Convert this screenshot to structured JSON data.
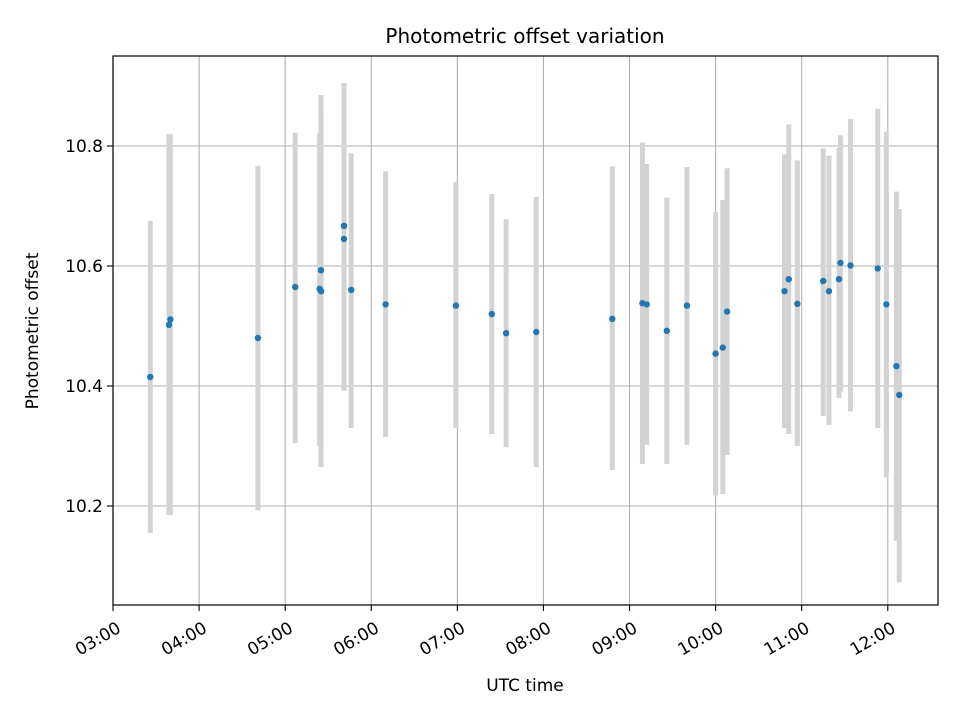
{
  "chart_data": {
    "type": "scatter",
    "title": "Photometric offset variation",
    "xlabel": "UTC time",
    "ylabel": "Photometric offset",
    "x_type": "time",
    "xlim": [
      "03:00",
      "12:35"
    ],
    "ylim": [
      10.035,
      10.95
    ],
    "x_ticks": [
      "03:00",
      "04:00",
      "05:00",
      "06:00",
      "07:00",
      "08:00",
      "09:00",
      "10:00",
      "11:00",
      "12:00"
    ],
    "y_ticks": [
      10.2,
      10.4,
      10.6,
      10.8
    ],
    "grid": true,
    "legend": "none",
    "colors": {
      "marker": "#1f77b4",
      "errorbar": "#d3d3d3",
      "grid": "#b0b0b0"
    },
    "points": [
      {
        "x": "03:26",
        "y": 10.415,
        "ylow": 10.155,
        "yhigh": 10.675
      },
      {
        "x": "03:39",
        "y": 10.502,
        "ylow": 10.185,
        "yhigh": 10.82
      },
      {
        "x": "03:40",
        "y": 10.511,
        "ylow": 10.185,
        "yhigh": 10.82
      },
      {
        "x": "04:41",
        "y": 10.48,
        "ylow": 10.193,
        "yhigh": 10.767
      },
      {
        "x": "05:07",
        "y": 10.565,
        "ylow": 10.305,
        "yhigh": 10.822
      },
      {
        "x": "05:24",
        "y": 10.562,
        "ylow": 10.3,
        "yhigh": 10.822
      },
      {
        "x": "05:25",
        "y": 10.593,
        "ylow": 10.3,
        "yhigh": 10.885
      },
      {
        "x": "05:25",
        "y": 10.558,
        "ylow": 10.265,
        "yhigh": 10.855
      },
      {
        "x": "05:41",
        "y": 10.667,
        "ylow": 10.43,
        "yhigh": 10.905
      },
      {
        "x": "05:41",
        "y": 10.645,
        "ylow": 10.392,
        "yhigh": 10.9
      },
      {
        "x": "05:46",
        "y": 10.56,
        "ylow": 10.33,
        "yhigh": 10.788
      },
      {
        "x": "06:10",
        "y": 10.536,
        "ylow": 10.315,
        "yhigh": 10.758
      },
      {
        "x": "06:59",
        "y": 10.534,
        "ylow": 10.33,
        "yhigh": 10.74
      },
      {
        "x": "07:24",
        "y": 10.52,
        "ylow": 10.32,
        "yhigh": 10.72
      },
      {
        "x": "07:34",
        "y": 10.488,
        "ylow": 10.298,
        "yhigh": 10.678
      },
      {
        "x": "07:55",
        "y": 10.49,
        "ylow": 10.265,
        "yhigh": 10.715
      },
      {
        "x": "08:48",
        "y": 10.512,
        "ylow": 10.26,
        "yhigh": 10.766
      },
      {
        "x": "09:09",
        "y": 10.538,
        "ylow": 10.27,
        "yhigh": 10.806
      },
      {
        "x": "09:12",
        "y": 10.536,
        "ylow": 10.302,
        "yhigh": 10.77
      },
      {
        "x": "09:26",
        "y": 10.492,
        "ylow": 10.27,
        "yhigh": 10.714
      },
      {
        "x": "09:40",
        "y": 10.534,
        "ylow": 10.302,
        "yhigh": 10.765
      },
      {
        "x": "10:00",
        "y": 10.454,
        "ylow": 10.218,
        "yhigh": 10.69
      },
      {
        "x": "10:05",
        "y": 10.464,
        "ylow": 10.22,
        "yhigh": 10.71
      },
      {
        "x": "10:08",
        "y": 10.524,
        "ylow": 10.285,
        "yhigh": 10.763
      },
      {
        "x": "10:48",
        "y": 10.558,
        "ylow": 10.33,
        "yhigh": 10.786
      },
      {
        "x": "10:51",
        "y": 10.578,
        "ylow": 10.32,
        "yhigh": 10.836
      },
      {
        "x": "10:57",
        "y": 10.537,
        "ylow": 10.3,
        "yhigh": 10.776
      },
      {
        "x": "11:15",
        "y": 10.575,
        "ylow": 10.35,
        "yhigh": 10.796
      },
      {
        "x": "11:19",
        "y": 10.558,
        "ylow": 10.335,
        "yhigh": 10.784
      },
      {
        "x": "11:26",
        "y": 10.578,
        "ylow": 10.38,
        "yhigh": 10.796
      },
      {
        "x": "11:27",
        "y": 10.605,
        "ylow": 10.39,
        "yhigh": 10.818
      },
      {
        "x": "11:34",
        "y": 10.601,
        "ylow": 10.358,
        "yhigh": 10.845
      },
      {
        "x": "11:53",
        "y": 10.596,
        "ylow": 10.33,
        "yhigh": 10.862
      },
      {
        "x": "11:59",
        "y": 10.536,
        "ylow": 10.248,
        "yhigh": 10.824
      },
      {
        "x": "12:06",
        "y": 10.433,
        "ylow": 10.142,
        "yhigh": 10.724
      },
      {
        "x": "12:08",
        "y": 10.385,
        "ylow": 10.073,
        "yhigh": 10.695
      }
    ]
  }
}
